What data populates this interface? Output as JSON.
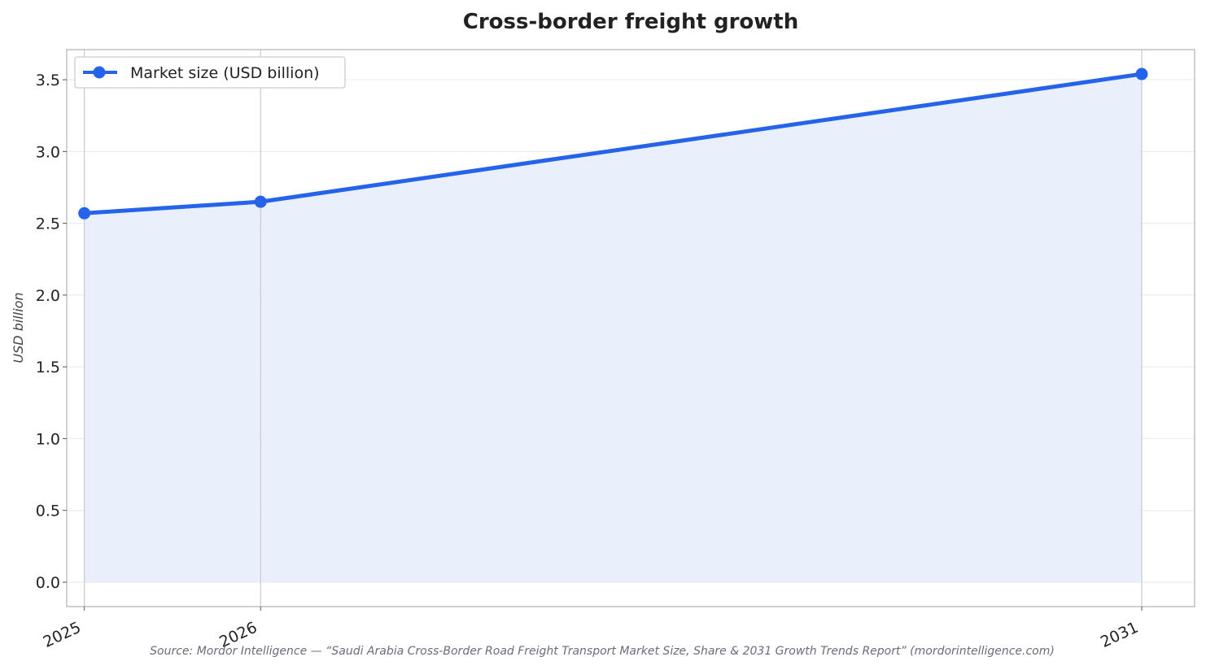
{
  "chart_data": {
    "type": "area",
    "title": "Cross-border freight growth",
    "xlabel": "",
    "ylabel": "USD billion",
    "categories": [
      "2025",
      "2026",
      "2031"
    ],
    "x": [
      2025,
      2026,
      2031
    ],
    "series": [
      {
        "name": "Market size (USD billion)",
        "values": [
          2.57,
          2.65,
          3.54
        ]
      }
    ],
    "ylim": [
      -0.17,
      3.71
    ],
    "yticks": [
      0.0,
      0.5,
      1.0,
      1.5,
      2.0,
      2.5,
      3.0,
      3.5
    ],
    "ytick_labels": [
      "0.0",
      "0.5",
      "1.0",
      "1.5",
      "2.0",
      "2.5",
      "3.0",
      "3.5"
    ],
    "grid": true,
    "legend_position": "top-left",
    "source": "Source: Mordor Intelligence — “Saudi Arabia Cross-Border Road Freight Transport Market Size, Share & 2031 Growth Trends Report” (mordorintelligence.com)",
    "colors": {
      "line": "#2563eb",
      "fill": "#e8eefb",
      "grid": "#ececec",
      "axes": "#c4c4c4"
    }
  }
}
